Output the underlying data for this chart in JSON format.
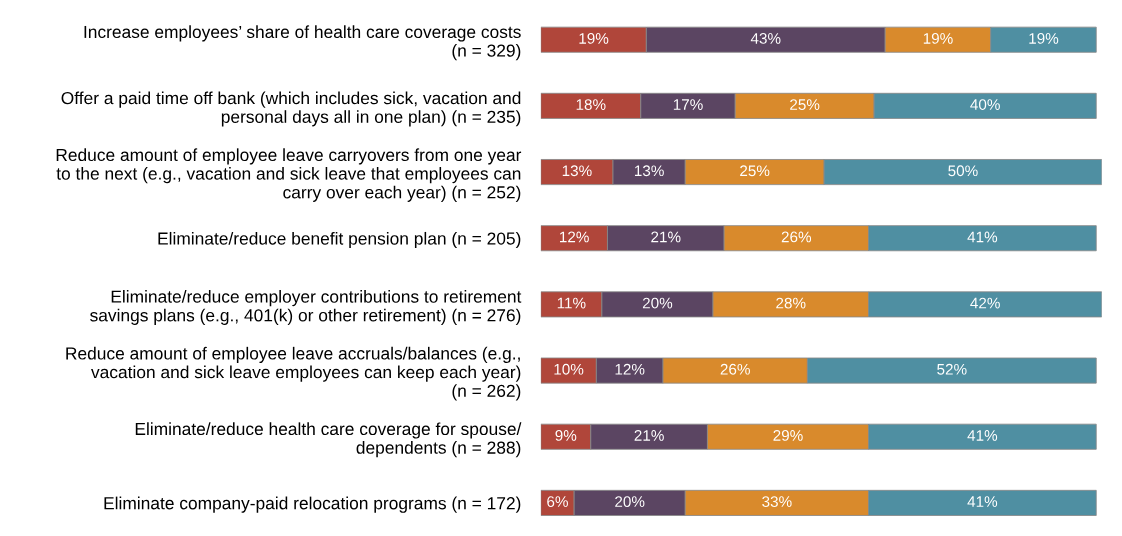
{
  "chart_data": {
    "type": "bar",
    "orientation": "horizontal",
    "stacked": true,
    "grid": false,
    "legend": false,
    "tick_labels": "y",
    "categories": [
      "Increase employees’ share of health care coverage costs\n(n = 329)",
      "Offer a paid time off bank (which includes sick, vacation and\npersonal days all in one plan) (n = 235)",
      "Reduce amount of employee leave carryovers from one year\nto the next (e.g., vacation and sick leave that employees can\ncarry over each year) (n = 252)",
      "Eliminate/reduce benefit pension plan (n = 205)",
      "Eliminate/reduce employer contributions to retirement\nsavings plans (e.g., 401(k) or other retirement) (n = 276)",
      "Reduce amount of employee leave accruals/balances (e.g.,\nvacation and sick leave employees can keep each year)\n(n = 262)",
      "Eliminate/reduce health care coverage for spouse/\ndependents (n = 288)",
      "Eliminate company-paid relocation programs (n = 172)"
    ],
    "series": [
      {
        "color": "#b0463a",
        "values": [
          19,
          18,
          13,
          12,
          11,
          10,
          9,
          6
        ],
        "value_labels": [
          "19%",
          "18%",
          "13%",
          "12%",
          "11%",
          "10%",
          "9%",
          "6%"
        ]
      },
      {
        "color": "#5b4562",
        "values": [
          43,
          17,
          13,
          21,
          20,
          12,
          21,
          20
        ],
        "value_labels": [
          "43%",
          "17%",
          "13%",
          "21%",
          "20%",
          "12%",
          "21%",
          "20%"
        ]
      },
      {
        "color": "#d98a2c",
        "values": [
          19,
          25,
          25,
          26,
          28,
          26,
          29,
          33
        ],
        "value_labels": [
          "19%",
          "25%",
          "25%",
          "26%",
          "28%",
          "26%",
          "29%",
          "33%"
        ]
      },
      {
        "color": "#4f8fa2",
        "values": [
          19,
          40,
          50,
          41,
          42,
          52,
          41,
          41
        ],
        "value_labels": [
          "19%",
          "40%",
          "50%",
          "41%",
          "42%",
          "52%",
          "41%",
          "41%"
        ]
      }
    ]
  }
}
